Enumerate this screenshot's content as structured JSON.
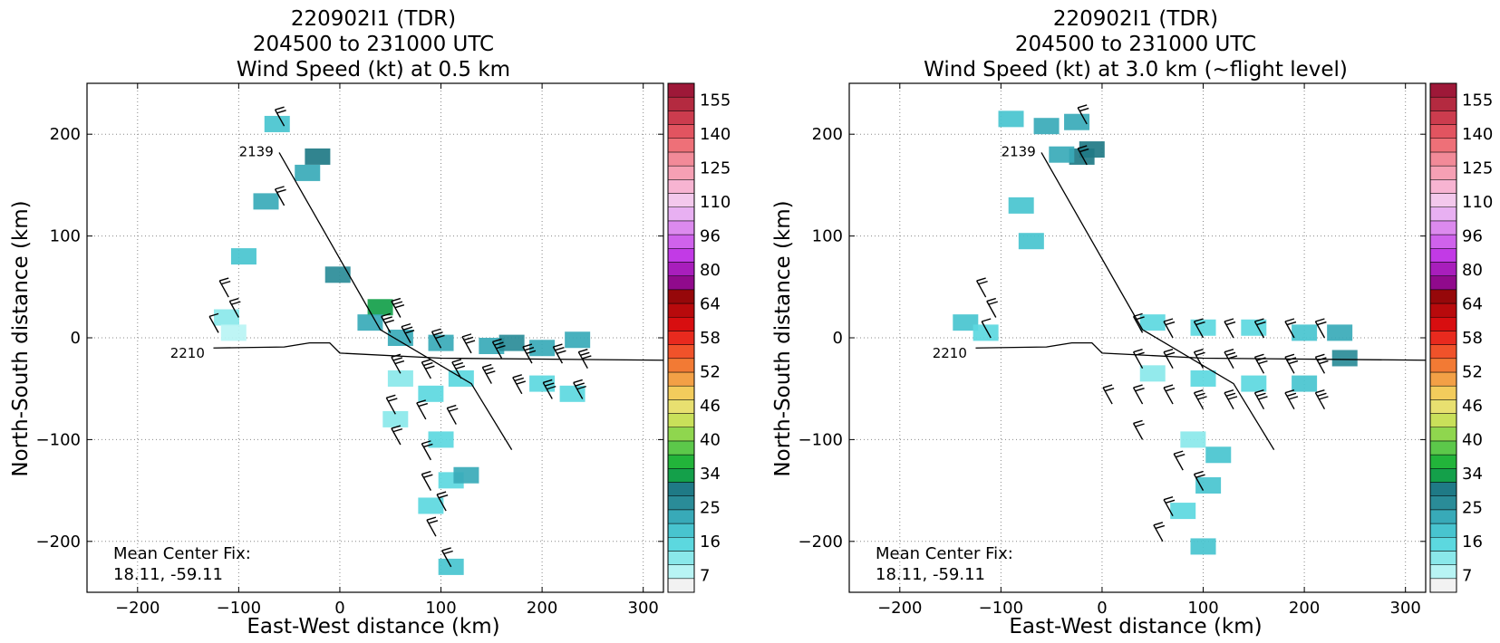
{
  "colorbar": {
    "labels": [
      "155",
      "140",
      "125",
      "110",
      "96",
      "80",
      "64",
      "58",
      "52",
      "46",
      "40",
      "34",
      "25",
      "16",
      "7"
    ],
    "colors": [
      "#f2f2f2",
      "#b8f4f4",
      "#8ae8ea",
      "#5cd8df",
      "#48c4cf",
      "#38aab8",
      "#2a8c98",
      "#1f7a86",
      "#14a04a",
      "#22b43a",
      "#5cc84a",
      "#8fd64e",
      "#c9e05a",
      "#e8e070",
      "#f3cc5c",
      "#f3a046",
      "#f27a34",
      "#f0522a",
      "#e82a1e",
      "#d80e10",
      "#b80a0c",
      "#96080a",
      "#900a8c",
      "#a81ebc",
      "#c23ae6",
      "#cf62ec",
      "#dc8aee",
      "#e8b0f2",
      "#f3c8ec",
      "#f7b4d2",
      "#f6a0b4",
      "#f28a98",
      "#ee7078",
      "#e25460",
      "#cc3c4e",
      "#b42a40",
      "#9e1838"
    ]
  },
  "panels": [
    {
      "title_line1": "220902I1 (TDR)",
      "title_line2": "204500 to 231000 UTC",
      "title_line3": "Wind Speed (kt) at 0.5 km",
      "xlabel": "East-West distance (km)",
      "ylabel": "North-South distance (km)",
      "fix_label": "Mean Center Fix:",
      "fix_value": "18.11, -59.11",
      "time_labels": [
        {
          "text": "2139",
          "x": -62,
          "y": 183
        },
        {
          "text": "2210",
          "x": -130,
          "y": -15
        }
      ]
    },
    {
      "title_line1": "220902I1 (TDR)",
      "title_line2": "204500 to 231000 UTC",
      "title_line3": "Wind Speed (kt) at 3.0 km (~flight level)",
      "xlabel": "East-West distance (km)",
      "ylabel": "North-South distance (km)",
      "fix_label": "Mean Center Fix:",
      "fix_value": "18.11, -59.11",
      "time_labels": [
        {
          "text": "2139",
          "x": -62,
          "y": 183
        },
        {
          "text": "2210",
          "x": -130,
          "y": -15
        }
      ]
    }
  ],
  "chart_data": [
    {
      "type": "heatmap",
      "title": "220902I1 (TDR) 204500 to 231000 UTC Wind Speed (kt) at 0.5 km",
      "xlabel": "East-West distance (km)",
      "ylabel": "North-South distance (km)",
      "xlim": [
        -250,
        320
      ],
      "ylim": [
        -250,
        250
      ],
      "xticks": [
        -200,
        -100,
        0,
        100,
        200,
        300
      ],
      "yticks": [
        -200,
        -100,
        0,
        100,
        200
      ],
      "grid": true,
      "colorbar_ticks": [
        7,
        16,
        25,
        34,
        40,
        46,
        52,
        58,
        64,
        80,
        96,
        110,
        125,
        140,
        155
      ],
      "flight_track": [
        [
          -60,
          182
        ],
        [
          40,
          8
        ],
        [
          130,
          -45
        ],
        [
          170,
          -110
        ]
      ],
      "flight_track2": [
        [
          -125,
          -10
        ],
        [
          -55,
          -9
        ],
        [
          -30,
          -5
        ],
        [
          -10,
          -5
        ],
        [
          0,
          -15
        ],
        [
          100,
          -20
        ],
        [
          320,
          -22
        ]
      ],
      "wind_cells": [
        {
          "x": -62,
          "y": 210,
          "v": 22
        },
        {
          "x": -22,
          "y": 178,
          "v": 32
        },
        {
          "x": -32,
          "y": 162,
          "v": 24
        },
        {
          "x": -73,
          "y": 134,
          "v": 24
        },
        {
          "x": -95,
          "y": 80,
          "v": 20
        },
        {
          "x": -2,
          "y": 62,
          "v": 30
        },
        {
          "x": -112,
          "y": 20,
          "v": 12
        },
        {
          "x": -105,
          "y": 5,
          "v": 10
        },
        {
          "x": 40,
          "y": 30,
          "v": 38
        },
        {
          "x": 30,
          "y": 15,
          "v": 26
        },
        {
          "x": 60,
          "y": 0,
          "v": 23
        },
        {
          "x": 100,
          "y": -5,
          "v": 24
        },
        {
          "x": 150,
          "y": -8,
          "v": 25
        },
        {
          "x": 170,
          "y": -5,
          "v": 30
        },
        {
          "x": 200,
          "y": -10,
          "v": 23
        },
        {
          "x": 235,
          "y": -2,
          "v": 24
        },
        {
          "x": 60,
          "y": -40,
          "v": 12
        },
        {
          "x": 90,
          "y": -55,
          "v": 16
        },
        {
          "x": 120,
          "y": -40,
          "v": 18
        },
        {
          "x": 200,
          "y": -45,
          "v": 18
        },
        {
          "x": 230,
          "y": -55,
          "v": 15
        },
        {
          "x": 55,
          "y": -80,
          "v": 12
        },
        {
          "x": 100,
          "y": -100,
          "v": 16
        },
        {
          "x": 110,
          "y": -140,
          "v": 18
        },
        {
          "x": 125,
          "y": -135,
          "v": 24
        },
        {
          "x": 90,
          "y": -165,
          "v": 16
        },
        {
          "x": 110,
          "y": -225,
          "v": 20
        }
      ],
      "barbs": [
        {
          "x": -55,
          "y": 208,
          "speed": 20
        },
        {
          "x": -55,
          "y": 130,
          "speed": 20
        },
        {
          "x": -110,
          "y": 40,
          "speed": 15
        },
        {
          "x": -100,
          "y": 20,
          "speed": 15
        },
        {
          "x": -120,
          "y": 5,
          "speed": 10
        },
        {
          "x": 60,
          "y": 20,
          "speed": 25
        },
        {
          "x": 50,
          "y": 5,
          "speed": 25
        },
        {
          "x": 70,
          "y": -5,
          "speed": 30
        },
        {
          "x": 100,
          "y": -10,
          "speed": 30
        },
        {
          "x": 130,
          "y": -15,
          "speed": 30
        },
        {
          "x": 160,
          "y": -20,
          "speed": 30
        },
        {
          "x": 190,
          "y": -25,
          "speed": 30
        },
        {
          "x": 220,
          "y": -25,
          "speed": 30
        },
        {
          "x": 245,
          "y": -30,
          "speed": 30
        },
        {
          "x": 60,
          "y": -35,
          "speed": 25
        },
        {
          "x": 90,
          "y": -40,
          "speed": 25
        },
        {
          "x": 120,
          "y": -40,
          "speed": 25
        },
        {
          "x": 150,
          "y": -45,
          "speed": 25
        },
        {
          "x": 180,
          "y": -55,
          "speed": 25
        },
        {
          "x": 210,
          "y": -60,
          "speed": 25
        },
        {
          "x": 240,
          "y": -60,
          "speed": 25
        },
        {
          "x": 55,
          "y": -75,
          "speed": 20
        },
        {
          "x": 85,
          "y": -80,
          "speed": 20
        },
        {
          "x": 115,
          "y": -85,
          "speed": 20
        },
        {
          "x": 60,
          "y": -105,
          "speed": 20
        },
        {
          "x": 90,
          "y": -120,
          "speed": 20
        },
        {
          "x": 90,
          "y": -150,
          "speed": 20
        },
        {
          "x": 105,
          "y": -170,
          "speed": 20
        },
        {
          "x": 95,
          "y": -195,
          "speed": 15
        },
        {
          "x": 110,
          "y": -225,
          "speed": 15
        }
      ]
    },
    {
      "type": "heatmap",
      "title": "220902I1 (TDR) 204500 to 231000 UTC Wind Speed (kt) at 3.0 km (~flight level)",
      "xlabel": "East-West distance (km)",
      "ylabel": "North-South distance (km)",
      "xlim": [
        -250,
        320
      ],
      "ylim": [
        -250,
        250
      ],
      "xticks": [
        -200,
        -100,
        0,
        100,
        200,
        300
      ],
      "yticks": [
        -200,
        -100,
        0,
        100,
        200
      ],
      "grid": true,
      "colorbar_ticks": [
        7,
        16,
        25,
        34,
        40,
        46,
        52,
        58,
        64,
        80,
        96,
        110,
        125,
        140,
        155
      ],
      "flight_track": [
        [
          -60,
          182
        ],
        [
          40,
          8
        ],
        [
          130,
          -45
        ],
        [
          170,
          -110
        ]
      ],
      "flight_track2": [
        [
          -125,
          -10
        ],
        [
          -55,
          -9
        ],
        [
          -30,
          -5
        ],
        [
          -10,
          -5
        ],
        [
          0,
          -15
        ],
        [
          100,
          -20
        ],
        [
          320,
          -22
        ]
      ],
      "wind_cells": [
        {
          "x": -90,
          "y": 215,
          "v": 22
        },
        {
          "x": -55,
          "y": 208,
          "v": 24
        },
        {
          "x": -25,
          "y": 212,
          "v": 24
        },
        {
          "x": -20,
          "y": 178,
          "v": 32
        },
        {
          "x": -40,
          "y": 180,
          "v": 24
        },
        {
          "x": -10,
          "y": 185,
          "v": 34
        },
        {
          "x": -80,
          "y": 130,
          "v": 20
        },
        {
          "x": -70,
          "y": 95,
          "v": 20
        },
        {
          "x": -135,
          "y": 15,
          "v": 22
        },
        {
          "x": -115,
          "y": 5,
          "v": 16
        },
        {
          "x": 50,
          "y": 15,
          "v": 16
        },
        {
          "x": 100,
          "y": 10,
          "v": 18
        },
        {
          "x": 150,
          "y": 10,
          "v": 18
        },
        {
          "x": 200,
          "y": 5,
          "v": 20
        },
        {
          "x": 235,
          "y": 5,
          "v": 26
        },
        {
          "x": 240,
          "y": -20,
          "v": 28
        },
        {
          "x": 50,
          "y": -35,
          "v": 14
        },
        {
          "x": 100,
          "y": -40,
          "v": 16
        },
        {
          "x": 150,
          "y": -45,
          "v": 18
        },
        {
          "x": 200,
          "y": -45,
          "v": 20
        },
        {
          "x": 90,
          "y": -100,
          "v": 14
        },
        {
          "x": 115,
          "y": -115,
          "v": 20
        },
        {
          "x": 105,
          "y": -145,
          "v": 20
        },
        {
          "x": 80,
          "y": -170,
          "v": 16
        },
        {
          "x": 100,
          "y": -205,
          "v": 20
        }
      ],
      "barbs": [
        {
          "x": -15,
          "y": 210,
          "speed": 20
        },
        {
          "x": -15,
          "y": 170,
          "speed": 20
        },
        {
          "x": -115,
          "y": 40,
          "speed": 15
        },
        {
          "x": -105,
          "y": 20,
          "speed": 15
        },
        {
          "x": -110,
          "y": 0,
          "speed": 10
        },
        {
          "x": 40,
          "y": 5,
          "speed": 20
        },
        {
          "x": 70,
          "y": 0,
          "speed": 20
        },
        {
          "x": 100,
          "y": 0,
          "speed": 20
        },
        {
          "x": 130,
          "y": 0,
          "speed": 20
        },
        {
          "x": 160,
          "y": 0,
          "speed": 20
        },
        {
          "x": 190,
          "y": 0,
          "speed": 20
        },
        {
          "x": 220,
          "y": 0,
          "speed": 20
        },
        {
          "x": 40,
          "y": -30,
          "speed": 20
        },
        {
          "x": 70,
          "y": -30,
          "speed": 20
        },
        {
          "x": 100,
          "y": -30,
          "speed": 20
        },
        {
          "x": 130,
          "y": -30,
          "speed": 25
        },
        {
          "x": 160,
          "y": -35,
          "speed": 25
        },
        {
          "x": 190,
          "y": -35,
          "speed": 25
        },
        {
          "x": 220,
          "y": -35,
          "speed": 25
        },
        {
          "x": 10,
          "y": -65,
          "speed": 20
        },
        {
          "x": 40,
          "y": -65,
          "speed": 20
        },
        {
          "x": 70,
          "y": -65,
          "speed": 20
        },
        {
          "x": 100,
          "y": -70,
          "speed": 25
        },
        {
          "x": 130,
          "y": -70,
          "speed": 25
        },
        {
          "x": 160,
          "y": -70,
          "speed": 25
        },
        {
          "x": 190,
          "y": -70,
          "speed": 25
        },
        {
          "x": 220,
          "y": -70,
          "speed": 25
        },
        {
          "x": 40,
          "y": -100,
          "speed": 20
        },
        {
          "x": 80,
          "y": -130,
          "speed": 20
        },
        {
          "x": 100,
          "y": -150,
          "speed": 20
        },
        {
          "x": 70,
          "y": -175,
          "speed": 20
        },
        {
          "x": 60,
          "y": -200,
          "speed": 15
        }
      ]
    }
  ]
}
